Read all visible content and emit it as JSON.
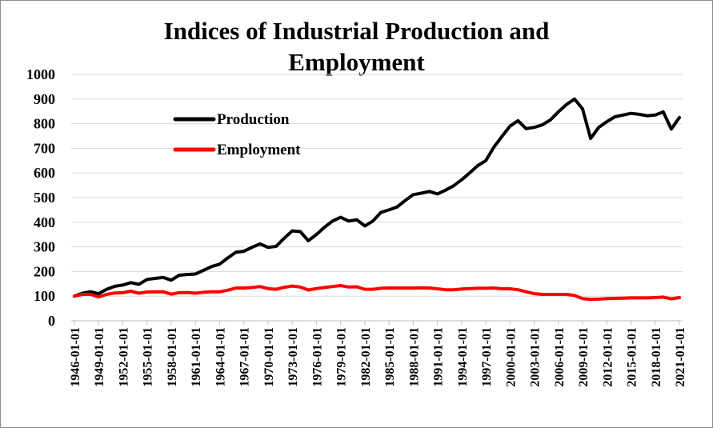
{
  "chart_data": {
    "type": "line",
    "title_line1": "Indices of Industrial Production and",
    "title_line2": "Employment",
    "xlabel": "",
    "ylabel": "",
    "ylim": [
      0,
      1000
    ],
    "yticks": [
      0,
      100,
      200,
      300,
      400,
      500,
      600,
      700,
      800,
      900,
      1000
    ],
    "grid": true,
    "legend_position": "upper-left",
    "x_tick_labels": [
      "1946-01-01",
      "1949-01-01",
      "1952-01-01",
      "1955-01-01",
      "1958-01-01",
      "1961-01-01",
      "1964-01-01",
      "1967-01-01",
      "1970-01-01",
      "1973-01-01",
      "1976-01-01",
      "1979-01-01",
      "1982-01-01",
      "1985-01-01",
      "1988-01-01",
      "1991-01-01",
      "1994-01-01",
      "1997-01-01",
      "2000-01-01",
      "2003-01-01",
      "2006-01-01",
      "2009-01-01",
      "2012-01-01",
      "2015-01-01",
      "2018-01-01",
      "2021-01-01"
    ],
    "x": [
      "1946-01-01",
      "1947-01-01",
      "1948-01-01",
      "1949-01-01",
      "1950-01-01",
      "1951-01-01",
      "1952-01-01",
      "1953-01-01",
      "1954-01-01",
      "1955-01-01",
      "1956-01-01",
      "1957-01-01",
      "1958-01-01",
      "1959-01-01",
      "1960-01-01",
      "1961-01-01",
      "1962-01-01",
      "1963-01-01",
      "1964-01-01",
      "1965-01-01",
      "1966-01-01",
      "1967-01-01",
      "1968-01-01",
      "1969-01-01",
      "1970-01-01",
      "1971-01-01",
      "1972-01-01",
      "1973-01-01",
      "1974-01-01",
      "1975-01-01",
      "1976-01-01",
      "1977-01-01",
      "1978-01-01",
      "1979-01-01",
      "1980-01-01",
      "1981-01-01",
      "1982-01-01",
      "1983-01-01",
      "1984-01-01",
      "1985-01-01",
      "1986-01-01",
      "1987-01-01",
      "1988-01-01",
      "1989-01-01",
      "1990-01-01",
      "1991-01-01",
      "1992-01-01",
      "1993-01-01",
      "1994-01-01",
      "1995-01-01",
      "1996-01-01",
      "1997-01-01",
      "1998-01-01",
      "1999-01-01",
      "2000-01-01",
      "2001-01-01",
      "2002-01-01",
      "2003-01-01",
      "2004-01-01",
      "2005-01-01",
      "2006-01-01",
      "2007-01-01",
      "2008-01-01",
      "2009-01-01",
      "2010-01-01",
      "2011-01-01",
      "2012-01-01",
      "2013-01-01",
      "2014-01-01",
      "2015-01-01",
      "2016-01-01",
      "2017-01-01",
      "2018-01-01",
      "2019-01-01",
      "2020-01-01",
      "2021-01-01"
    ],
    "series": [
      {
        "name": "Production",
        "color": "#000000",
        "values": [
          100,
          112,
          118,
          110,
          128,
          140,
          145,
          155,
          148,
          168,
          172,
          176,
          165,
          185,
          188,
          190,
          205,
          220,
          230,
          255,
          278,
          282,
          298,
          312,
          298,
          302,
          335,
          365,
          362,
          325,
          350,
          380,
          405,
          420,
          405,
          410,
          385,
          405,
          440,
          450,
          462,
          488,
          512,
          518,
          525,
          515,
          530,
          548,
          572,
          600,
          630,
          650,
          705,
          748,
          790,
          812,
          780,
          785,
          795,
          815,
          848,
          878,
          900,
          860,
          740,
          785,
          808,
          828,
          835,
          842,
          838,
          832,
          835,
          848,
          778,
          825
        ]
      },
      {
        "name": "Employment",
        "color": "#ff0000",
        "values": [
          100,
          107,
          107,
          97,
          107,
          113,
          114,
          120,
          112,
          117,
          118,
          118,
          108,
          114,
          115,
          112,
          116,
          118,
          118,
          124,
          133,
          133,
          135,
          139,
          131,
          128,
          136,
          141,
          137,
          125,
          131,
          135,
          139,
          143,
          137,
          138,
          128,
          128,
          132,
          133,
          133,
          133,
          133,
          134,
          133,
          130,
          126,
          126,
          129,
          131,
          132,
          132,
          133,
          130,
          130,
          126,
          118,
          110,
          107,
          107,
          107,
          107,
          103,
          90,
          87,
          88,
          90,
          91,
          92,
          93,
          93,
          93,
          94,
          96,
          89,
          94
        ]
      }
    ]
  }
}
